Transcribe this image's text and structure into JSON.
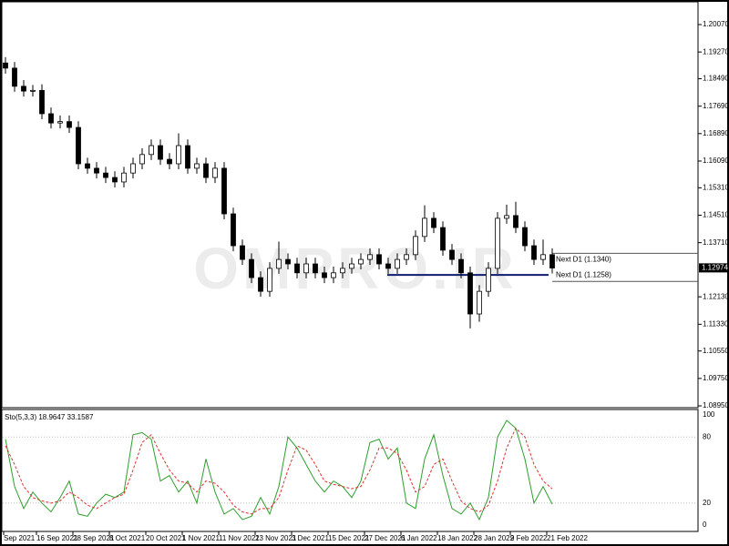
{
  "chart_data": [
    {
      "type": "candlestick",
      "watermark": "OMPRO.IR",
      "up_color": "#ffffff",
      "down_color": "#000000",
      "ylim": [
        1.0895,
        1.2007
      ],
      "yticks": [
        {
          "value": 1.2007,
          "label": "1.20070"
        },
        {
          "value": 1.1927,
          "label": "1.19270"
        },
        {
          "value": 1.1849,
          "label": "1.18490"
        },
        {
          "value": 1.1769,
          "label": "1.17690"
        },
        {
          "value": 1.1689,
          "label": "1.16890"
        },
        {
          "value": 1.1609,
          "label": "1.16090"
        },
        {
          "value": 1.1531,
          "label": "1.15310"
        },
        {
          "value": 1.1451,
          "label": "1.14510"
        },
        {
          "value": 1.1371,
          "label": "1.13710"
        },
        {
          "value": 1.1213,
          "label": "1.12130"
        },
        {
          "value": 1.1133,
          "label": "1.11330"
        },
        {
          "value": 1.1055,
          "label": "1.10550"
        },
        {
          "value": 1.0975,
          "label": "1.09750"
        },
        {
          "value": 1.0895,
          "label": "1.08950"
        }
      ],
      "categories": [
        "Sep 2021",
        "16 Sep 2021",
        "28 Sep 2021",
        "8 Oct 2021",
        "20 Oct 2021",
        "1 Nov 2021",
        "11 Nov 2021",
        "23 Nov 2021",
        "3 Dec 2021",
        "15 Dec 2021",
        "27 Dec 2021",
        "6 Jan 2022",
        "18 Jan 2022",
        "28 Jan 2022",
        "9 Feb 2022",
        "21 Feb 2022"
      ],
      "price_label": {
        "value": 1.12974,
        "label": "1.12974"
      },
      "next_levels": [
        {
          "value": 1.134,
          "label": "Next D1 (1.1340)"
        },
        {
          "value": 1.1258,
          "label": "Next D1 (1.1258)"
        }
      ],
      "hline": {
        "value": 1.1277,
        "color": "#101c70"
      },
      "ohlc": [
        [
          1.1895,
          1.1912,
          1.1864,
          1.188
        ],
        [
          1.188,
          1.1898,
          1.1811,
          1.1827
        ],
        [
          1.1827,
          1.1845,
          1.1797,
          1.1813
        ],
        [
          1.1813,
          1.1831,
          1.1797,
          1.1815
        ],
        [
          1.1815,
          1.1833,
          1.1731,
          1.1747
        ],
        [
          1.1747,
          1.1765,
          1.1704,
          1.172
        ],
        [
          1.172,
          1.1742,
          1.1704,
          1.1724
        ],
        [
          1.1724,
          1.1742,
          1.1691,
          1.1707
        ],
        [
          1.1707,
          1.1725,
          1.1585,
          1.1601
        ],
        [
          1.1601,
          1.1619,
          1.1572,
          1.1588
        ],
        [
          1.1588,
          1.1606,
          1.1558,
          1.1574
        ],
        [
          1.1574,
          1.1592,
          1.1545,
          1.1561
        ],
        [
          1.1561,
          1.1579,
          1.1532,
          1.1548
        ],
        [
          1.1548,
          1.1592,
          1.1532,
          1.1574
        ],
        [
          1.1574,
          1.1619,
          1.1558,
          1.1601
        ],
        [
          1.1601,
          1.1646,
          1.1585,
          1.1628
        ],
        [
          1.1628,
          1.1672,
          1.1612,
          1.1654
        ],
        [
          1.1654,
          1.1672,
          1.1598,
          1.1614
        ],
        [
          1.1614,
          1.1632,
          1.1585,
          1.1601
        ],
        [
          1.1601,
          1.169,
          1.1585,
          1.1654
        ],
        [
          1.1654,
          1.1672,
          1.1572,
          1.1588
        ],
        [
          1.1588,
          1.1619,
          1.1572,
          1.1601
        ],
        [
          1.1601,
          1.1619,
          1.1545,
          1.1561
        ],
        [
          1.1561,
          1.1606,
          1.1545,
          1.1588
        ],
        [
          1.1588,
          1.1606,
          1.1439,
          1.1455
        ],
        [
          1.1455,
          1.1473,
          1.1346,
          1.1362
        ],
        [
          1.1362,
          1.138,
          1.1306,
          1.1322
        ],
        [
          1.1322,
          1.134,
          1.1253,
          1.1269
        ],
        [
          1.1269,
          1.1287,
          1.1213,
          1.1229
        ],
        [
          1.1229,
          1.1314,
          1.1213,
          1.1296
        ],
        [
          1.1296,
          1.1374,
          1.128,
          1.1322
        ],
        [
          1.1322,
          1.134,
          1.1293,
          1.1309
        ],
        [
          1.1309,
          1.1327,
          1.1267,
          1.1283
        ],
        [
          1.1283,
          1.1327,
          1.1267,
          1.1309
        ],
        [
          1.1309,
          1.1327,
          1.1267,
          1.1283
        ],
        [
          1.1283,
          1.1301,
          1.1253,
          1.1269
        ],
        [
          1.1269,
          1.1301,
          1.1253,
          1.1283
        ],
        [
          1.1283,
          1.1314,
          1.1267,
          1.1296
        ],
        [
          1.1296,
          1.1327,
          1.128,
          1.1309
        ],
        [
          1.1309,
          1.134,
          1.1293,
          1.1322
        ],
        [
          1.1322,
          1.1354,
          1.1306,
          1.1336
        ],
        [
          1.1336,
          1.1354,
          1.1293,
          1.1309
        ],
        [
          1.1309,
          1.1327,
          1.128,
          1.1296
        ],
        [
          1.1296,
          1.134,
          1.128,
          1.1322
        ],
        [
          1.1322,
          1.1354,
          1.1306,
          1.1336
        ],
        [
          1.1336,
          1.1407,
          1.132,
          1.1389
        ],
        [
          1.1389,
          1.148,
          1.1373,
          1.1442
        ],
        [
          1.1442,
          1.146,
          1.1399,
          1.1415
        ],
        [
          1.1415,
          1.1433,
          1.1333,
          1.1349
        ],
        [
          1.1349,
          1.1367,
          1.1306,
          1.1322
        ],
        [
          1.1322,
          1.134,
          1.1267,
          1.1283
        ],
        [
          1.1283,
          1.1301,
          1.1121,
          1.1163
        ],
        [
          1.1163,
          1.1247,
          1.114,
          1.1229
        ],
        [
          1.1229,
          1.1314,
          1.1213,
          1.1296
        ],
        [
          1.1296,
          1.146,
          1.128,
          1.1442
        ],
        [
          1.1442,
          1.1482,
          1.1426,
          1.145
        ],
        [
          1.145,
          1.149,
          1.1399,
          1.1415
        ],
        [
          1.1415,
          1.1433,
          1.1346,
          1.1362
        ],
        [
          1.1362,
          1.138,
          1.1306,
          1.1322
        ],
        [
          1.1322,
          1.138,
          1.1306,
          1.1336
        ],
        [
          1.1336,
          1.1354,
          1.1281,
          1.1297
        ]
      ]
    },
    {
      "type": "line",
      "title": "Sto(5,3,3) 18.9647 33.1587",
      "ylim": [
        0,
        100
      ],
      "yticks": [
        100,
        80,
        20,
        0
      ],
      "series": [
        {
          "color": "#2e9e2e",
          "values": [
            78,
            35,
            15,
            30,
            20,
            12,
            25,
            40,
            10,
            8,
            20,
            28,
            25,
            30,
            82,
            84,
            78,
            40,
            45,
            30,
            40,
            20,
            60,
            30,
            10,
            15,
            5,
            8,
            25,
            10,
            35,
            80,
            70,
            55,
            40,
            30,
            40,
            35,
            25,
            40,
            75,
            78,
            60,
            70,
            20,
            15,
            60,
            82,
            45,
            15,
            10,
            20,
            5,
            25,
            80,
            95,
            88,
            60,
            20,
            35,
            19
          ]
        },
        {
          "color": "#e03030",
          "dashed": true,
          "values": [
            72,
            55,
            35,
            25,
            22,
            20,
            22,
            30,
            25,
            18,
            15,
            20,
            25,
            28,
            50,
            75,
            82,
            65,
            50,
            40,
            38,
            30,
            40,
            38,
            30,
            18,
            12,
            10,
            15,
            15,
            25,
            50,
            72,
            68,
            55,
            40,
            37,
            35,
            33,
            35,
            50,
            70,
            70,
            65,
            50,
            30,
            35,
            55,
            60,
            40,
            22,
            15,
            12,
            18,
            40,
            70,
            88,
            80,
            55,
            40,
            33
          ]
        }
      ]
    }
  ]
}
